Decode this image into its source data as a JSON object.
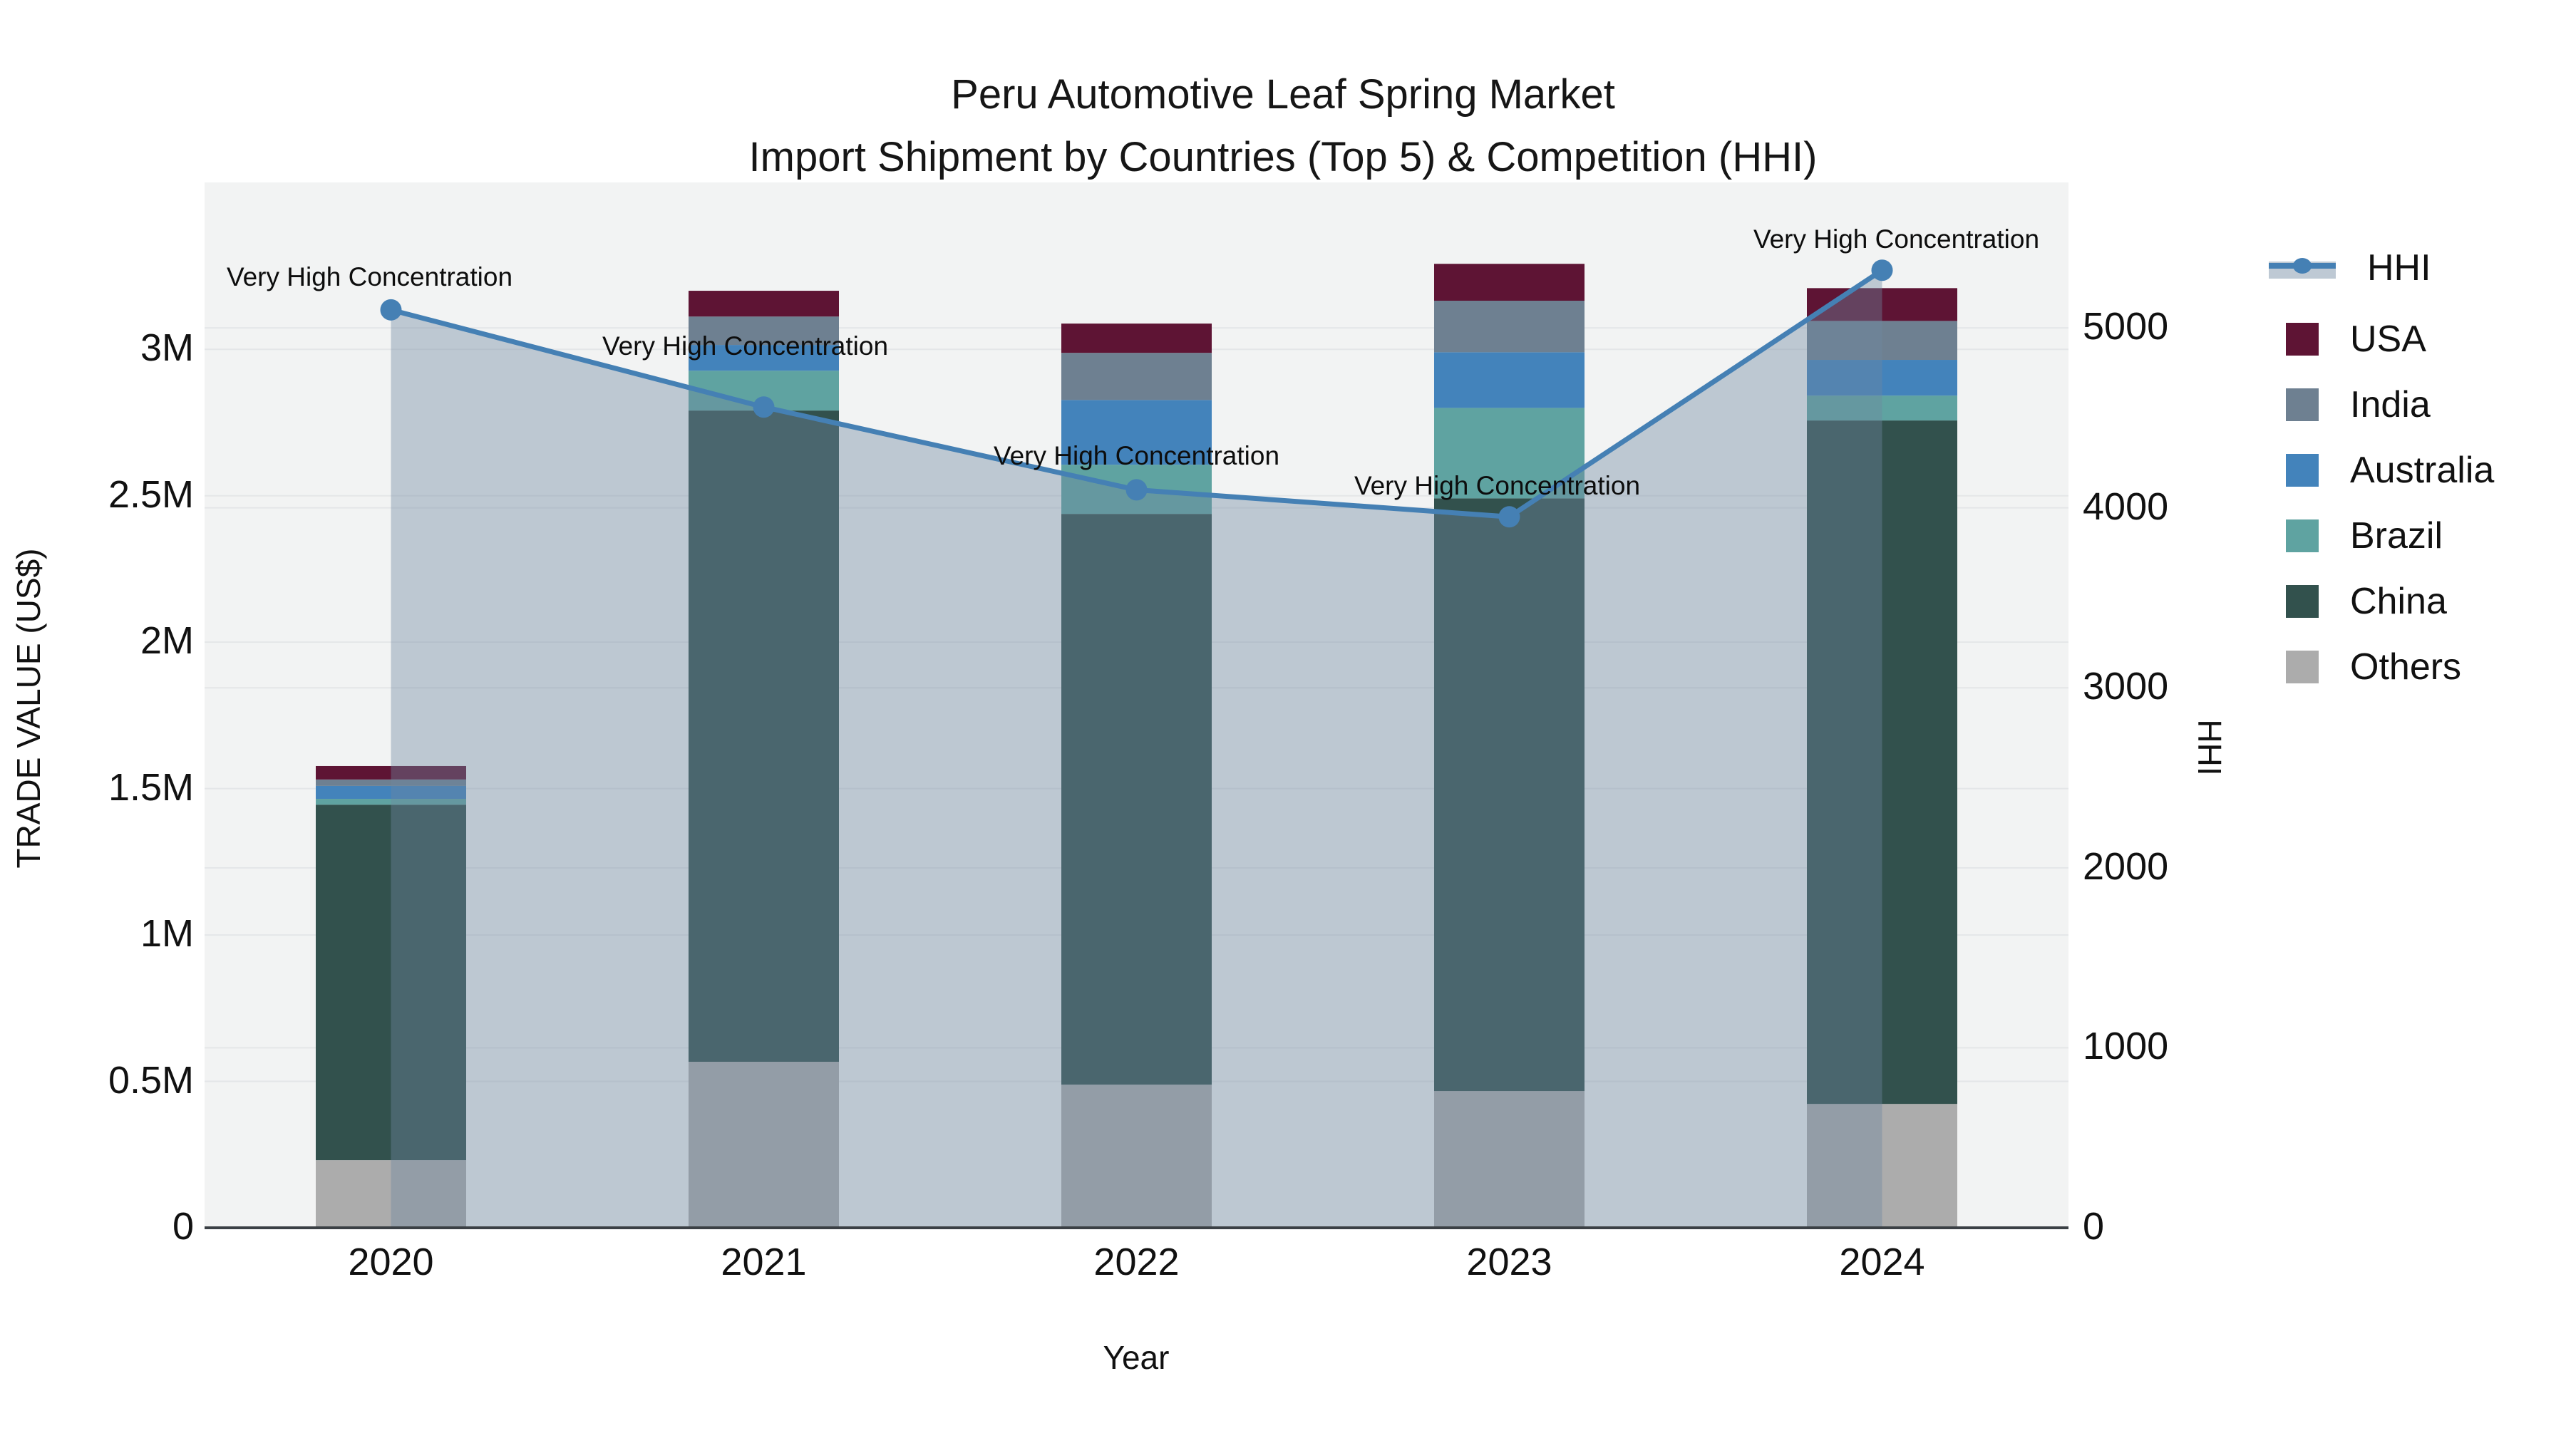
{
  "title": {
    "line1": "Peru Automotive Leaf Spring Market",
    "line2": "Import Shipment by Countries (Top 5) & Competition (HHI)"
  },
  "chart_data": {
    "type": "bar",
    "subtype": "stacked-bars-with-line-area-combo",
    "categories": [
      "2020",
      "2021",
      "2022",
      "2023",
      "2024"
    ],
    "xlabel": "Year",
    "ylabel_left": "TRADE VALUE (US$)",
    "ylabel_right": "HHI",
    "y_left_ticks": {
      "labels": [
        "0",
        "0.5M",
        "1M",
        "1.5M",
        "2M",
        "2.5M",
        "3M"
      ],
      "values": [
        0,
        0.5,
        1,
        1.5,
        2,
        2.5,
        3
      ]
    },
    "y_right_ticks": {
      "labels": [
        "0",
        "1000",
        "2000",
        "3000",
        "4000",
        "5000"
      ],
      "values": [
        0,
        1000,
        2000,
        3000,
        4000,
        5000
      ]
    },
    "y_left_max": 3.57,
    "y_right_max": 5808,
    "grid": true,
    "legend_position": "right",
    "series": [
      {
        "name": "USA",
        "color": "#5E1434",
        "values": [
          0.046,
          0.088,
          0.1,
          0.126,
          0.112
        ]
      },
      {
        "name": "India",
        "color": "#6E8091",
        "values": [
          0.022,
          0.097,
          0.161,
          0.176,
          0.133
        ]
      },
      {
        "name": "Australia",
        "color": "#4383BB",
        "values": [
          0.044,
          0.088,
          0.221,
          0.19,
          0.122
        ]
      },
      {
        "name": "Brazil",
        "color": "#5FA3A1",
        "values": [
          0.02,
          0.136,
          0.168,
          0.309,
          0.085
        ]
      },
      {
        "name": "China",
        "color": "#32514D",
        "values": [
          1.214,
          2.224,
          1.949,
          2.024,
          2.334
        ]
      },
      {
        "name": "Others",
        "color": "#ACACAC",
        "values": [
          0.231,
          0.567,
          0.489,
          0.467,
          0.423
        ]
      }
    ],
    "stack_order_bottom_to_top": [
      "Others",
      "China",
      "Brazil",
      "Australia",
      "India",
      "USA"
    ],
    "totals": [
      1.577,
      3.2,
      3.088,
      3.292,
      3.209
    ],
    "hhi": {
      "name": "HHI",
      "values": [
        5100,
        4560,
        4100,
        3950,
        5320
      ],
      "line_color": "#4580B4",
      "area_fill": "rgba(110,135,160,0.40)"
    },
    "annotations": [
      {
        "text": "Very High Concentration",
        "category": "2020"
      },
      {
        "text": "Very High Concentration",
        "category": "2021"
      },
      {
        "text": "Very High Concentration",
        "category": "2022"
      },
      {
        "text": "Very High Concentration",
        "category": "2023"
      },
      {
        "text": "Very High Concentration",
        "category": "2024"
      }
    ]
  },
  "legend": {
    "entries": [
      {
        "label": "HHI",
        "type": "line",
        "color": "#4580B4"
      },
      {
        "label": "USA",
        "type": "swatch",
        "color": "#5E1434"
      },
      {
        "label": "India",
        "type": "swatch",
        "color": "#6E8091"
      },
      {
        "label": "Australia",
        "type": "swatch",
        "color": "#4383BB"
      },
      {
        "label": "Brazil",
        "type": "swatch",
        "color": "#5FA3A1"
      },
      {
        "label": "China",
        "type": "swatch",
        "color": "#32514D"
      },
      {
        "label": "Others",
        "type": "swatch",
        "color": "#ACACAC"
      }
    ]
  },
  "colors": {
    "plot_bg": "#F2F3F3",
    "page_bg": "#FFFFFF",
    "gridline": "#E4E6E8",
    "axis_line": "#3B4045",
    "text": "#111111"
  }
}
